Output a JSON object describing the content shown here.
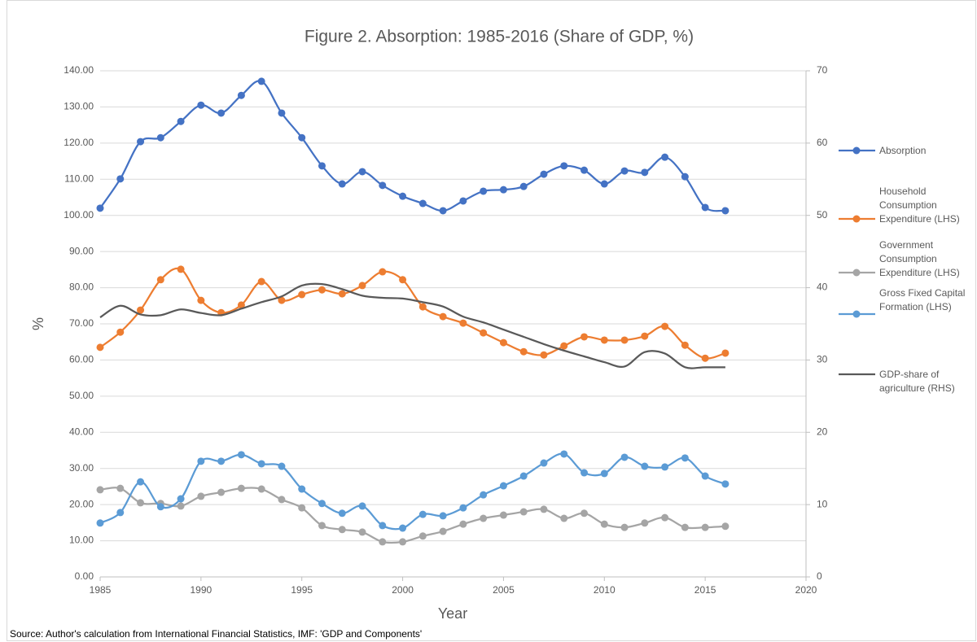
{
  "chart_data": {
    "type": "line",
    "title": "Figure 2. Absorption: 1985-2016 (Share of GDP, %)",
    "xlabel": "Year",
    "ylabel": "%",
    "source": "Source: Author's calculation from International Financial Statistics, IMF: 'GDP and Components'",
    "x": [
      1985,
      1986,
      1987,
      1988,
      1989,
      1990,
      1991,
      1992,
      1993,
      1994,
      1995,
      1996,
      1997,
      1998,
      1999,
      2000,
      2001,
      2002,
      2003,
      2004,
      2005,
      2006,
      2007,
      2008,
      2009,
      2010,
      2011,
      2012,
      2013,
      2014,
      2015,
      2016
    ],
    "xlim": [
      1985,
      2020
    ],
    "xticks": [
      1985,
      1990,
      1995,
      2000,
      2005,
      2010,
      2015,
      2020
    ],
    "ylim": [
      0,
      140
    ],
    "yticks": [
      {
        "value": 0,
        "label": "0.00"
      },
      {
        "value": 10,
        "label": "10.00"
      },
      {
        "value": 20,
        "label": "20.00"
      },
      {
        "value": 30,
        "label": "30.00"
      },
      {
        "value": 40,
        "label": "40.00"
      },
      {
        "value": 50,
        "label": "50.00"
      },
      {
        "value": 60,
        "label": "60.00"
      },
      {
        "value": 70,
        "label": "70.00"
      },
      {
        "value": 80,
        "label": "80.00"
      },
      {
        "value": 90,
        "label": "90.00"
      },
      {
        "value": 100,
        "label": "100.00"
      },
      {
        "value": 110,
        "label": "110.00"
      },
      {
        "value": 120,
        "label": "120.00"
      },
      {
        "value": 130,
        "label": "130.00"
      },
      {
        "value": 140,
        "label": "140.00"
      }
    ],
    "y2lim": [
      0,
      70
    ],
    "y2ticks": [
      0,
      10,
      20,
      30,
      40,
      50,
      60,
      70
    ],
    "grid": true,
    "smooth": true,
    "legend": "right",
    "series": [
      {
        "name": "Absorption",
        "color": "#4472c4",
        "marker": true,
        "values": [
          102.0,
          110.1,
          120.4,
          121.5,
          126.0,
          130.5,
          128.3,
          133.2,
          137.1,
          128.3,
          121.5,
          113.7,
          108.7,
          112.1,
          108.3,
          105.3,
          103.3,
          101.3,
          104.0,
          106.7,
          107.1,
          108.0,
          111.4,
          113.7,
          112.5,
          108.7,
          112.3,
          111.9,
          116.1,
          110.7,
          102.2,
          101.3
        ]
      },
      {
        "name": "Household Consumption Expenditure (LHS)",
        "color": "#ed7d31",
        "marker": true,
        "values": [
          63.5,
          67.7,
          73.8,
          82.2,
          85.1,
          76.5,
          73.1,
          75.2,
          81.7,
          76.5,
          78.1,
          79.4,
          78.3,
          80.6,
          84.4,
          82.2,
          74.7,
          72.0,
          70.2,
          67.5,
          64.8,
          62.3,
          61.4,
          63.9,
          66.4,
          65.5,
          65.5,
          66.6,
          69.3,
          64.1,
          60.5,
          61.9
        ]
      },
      {
        "name": "Government Consumption Expenditure (LHS)",
        "color": "#a5a5a5",
        "marker": true,
        "values": [
          24.1,
          24.5,
          20.5,
          20.3,
          19.6,
          22.3,
          23.4,
          24.5,
          24.3,
          21.4,
          19.1,
          14.2,
          13.1,
          12.4,
          9.7,
          9.7,
          11.3,
          12.6,
          14.6,
          16.2,
          17.1,
          18.0,
          18.7,
          16.2,
          17.6,
          14.6,
          13.7,
          14.9,
          16.4,
          13.7,
          13.7,
          14.0
        ]
      },
      {
        "name": "Gross Fixed Capital Formation (LHS)",
        "color": "#5b9bd5",
        "marker": true,
        "values": [
          14.9,
          17.8,
          26.3,
          19.4,
          21.6,
          32.0,
          32.0,
          33.8,
          31.3,
          30.6,
          24.3,
          20.3,
          17.6,
          19.6,
          14.2,
          13.5,
          17.3,
          16.9,
          19.1,
          22.7,
          25.2,
          27.9,
          31.5,
          34.0,
          28.8,
          28.6,
          33.1,
          30.6,
          30.4,
          32.9,
          27.9,
          25.7
        ]
      },
      {
        "name": "GDP-share of agriculture (RHS)",
        "color": "#595959",
        "marker": false,
        "axis": "y2",
        "values": [
          35.9,
          37.5,
          36.3,
          36.2,
          37.0,
          36.5,
          36.2,
          37.1,
          38.0,
          38.8,
          40.3,
          40.5,
          39.8,
          38.9,
          38.6,
          38.5,
          38.0,
          37.4,
          36.0,
          35.2,
          34.2,
          33.2,
          32.2,
          31.3,
          30.5,
          29.7,
          29.1,
          31.1,
          30.9,
          29.0,
          29.0,
          29.0
        ]
      }
    ]
  }
}
